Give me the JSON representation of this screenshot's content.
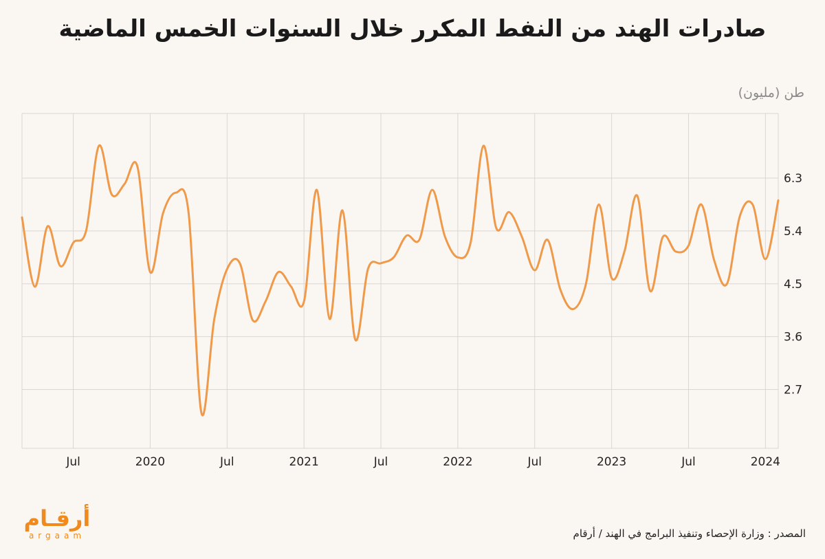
{
  "title": "صادرات الهند من النفط المكرر خلال السنوات الخمس الماضية",
  "unit_label": "طن (مليون)",
  "source": "المصدر :  وزارة الإحصاء وتنفيذ البرامج في الهند / أرقام",
  "logo": {
    "arabic": "أرقـام",
    "latin": "argaam",
    "color": "#f08a1c"
  },
  "colors": {
    "line": "#ef9a4a",
    "grid": "#d9d6d3",
    "background": "#faf6f2"
  },
  "chart_data": {
    "type": "line",
    "title": "صادرات الهند من النفط المكرر خلال السنوات الخمس الماضية",
    "ylabel": "طن (مليون)",
    "xlabel": "",
    "ylim": [
      1.7,
      7.4
    ],
    "y_ticks": [
      2.7,
      3.6,
      4.5,
      5.4,
      6.3
    ],
    "grid": true,
    "x_ticks": [
      {
        "label": "Jul",
        "date": "2019-07"
      },
      {
        "label": "2020",
        "date": "2020-01"
      },
      {
        "label": "Jul",
        "date": "2020-07"
      },
      {
        "label": "2021",
        "date": "2021-01"
      },
      {
        "label": "Jul",
        "date": "2021-07"
      },
      {
        "label": "2022",
        "date": "2022-01"
      },
      {
        "label": "Jul",
        "date": "2022-07"
      },
      {
        "label": "2023",
        "date": "2023-01"
      },
      {
        "label": "Jul",
        "date": "2023-07"
      },
      {
        "label": "2024",
        "date": "2024-01"
      }
    ],
    "x_range": [
      "2019-03",
      "2024-02"
    ],
    "series": [
      {
        "x": [
          "2019-03",
          "2019-04",
          "2019-05",
          "2019-06",
          "2019-07",
          "2019-08",
          "2019-09",
          "2019-10",
          "2019-11",
          "2019-12",
          "2020-01",
          "2020-02",
          "2020-03",
          "2020-04",
          "2020-05",
          "2020-06",
          "2020-07",
          "2020-08",
          "2020-09",
          "2020-10",
          "2020-11",
          "2020-12",
          "2021-01",
          "2021-02",
          "2021-03",
          "2021-04",
          "2021-05",
          "2021-06",
          "2021-07",
          "2021-08",
          "2021-09",
          "2021-10",
          "2021-11",
          "2021-12",
          "2022-01",
          "2022-02",
          "2022-03",
          "2022-04",
          "2022-05",
          "2022-06",
          "2022-07",
          "2022-08",
          "2022-09",
          "2022-10",
          "2022-11",
          "2022-12",
          "2023-01",
          "2023-02",
          "2023-03",
          "2023-04",
          "2023-05",
          "2023-06",
          "2023-07",
          "2023-08",
          "2023-09",
          "2023-10",
          "2023-11",
          "2023-12",
          "2024-01",
          "2024-02"
        ],
        "values": [
          5.63,
          4.45,
          5.48,
          4.8,
          5.2,
          5.4,
          6.85,
          6.02,
          6.2,
          6.5,
          4.7,
          5.7,
          6.05,
          5.7,
          2.3,
          3.9,
          4.75,
          4.85,
          3.88,
          4.2,
          4.7,
          4.45,
          4.2,
          6.1,
          3.9,
          5.75,
          3.55,
          4.76,
          4.85,
          4.95,
          5.32,
          5.25,
          6.1,
          5.3,
          4.95,
          5.2,
          6.85,
          5.45,
          5.72,
          5.3,
          4.73,
          5.25,
          4.4,
          4.07,
          4.5,
          5.85,
          4.6,
          5.05,
          6.0,
          4.38,
          5.3,
          5.05,
          5.15,
          5.85,
          4.9,
          4.5,
          5.65,
          5.85,
          4.92,
          5.92
        ]
      }
    ]
  }
}
